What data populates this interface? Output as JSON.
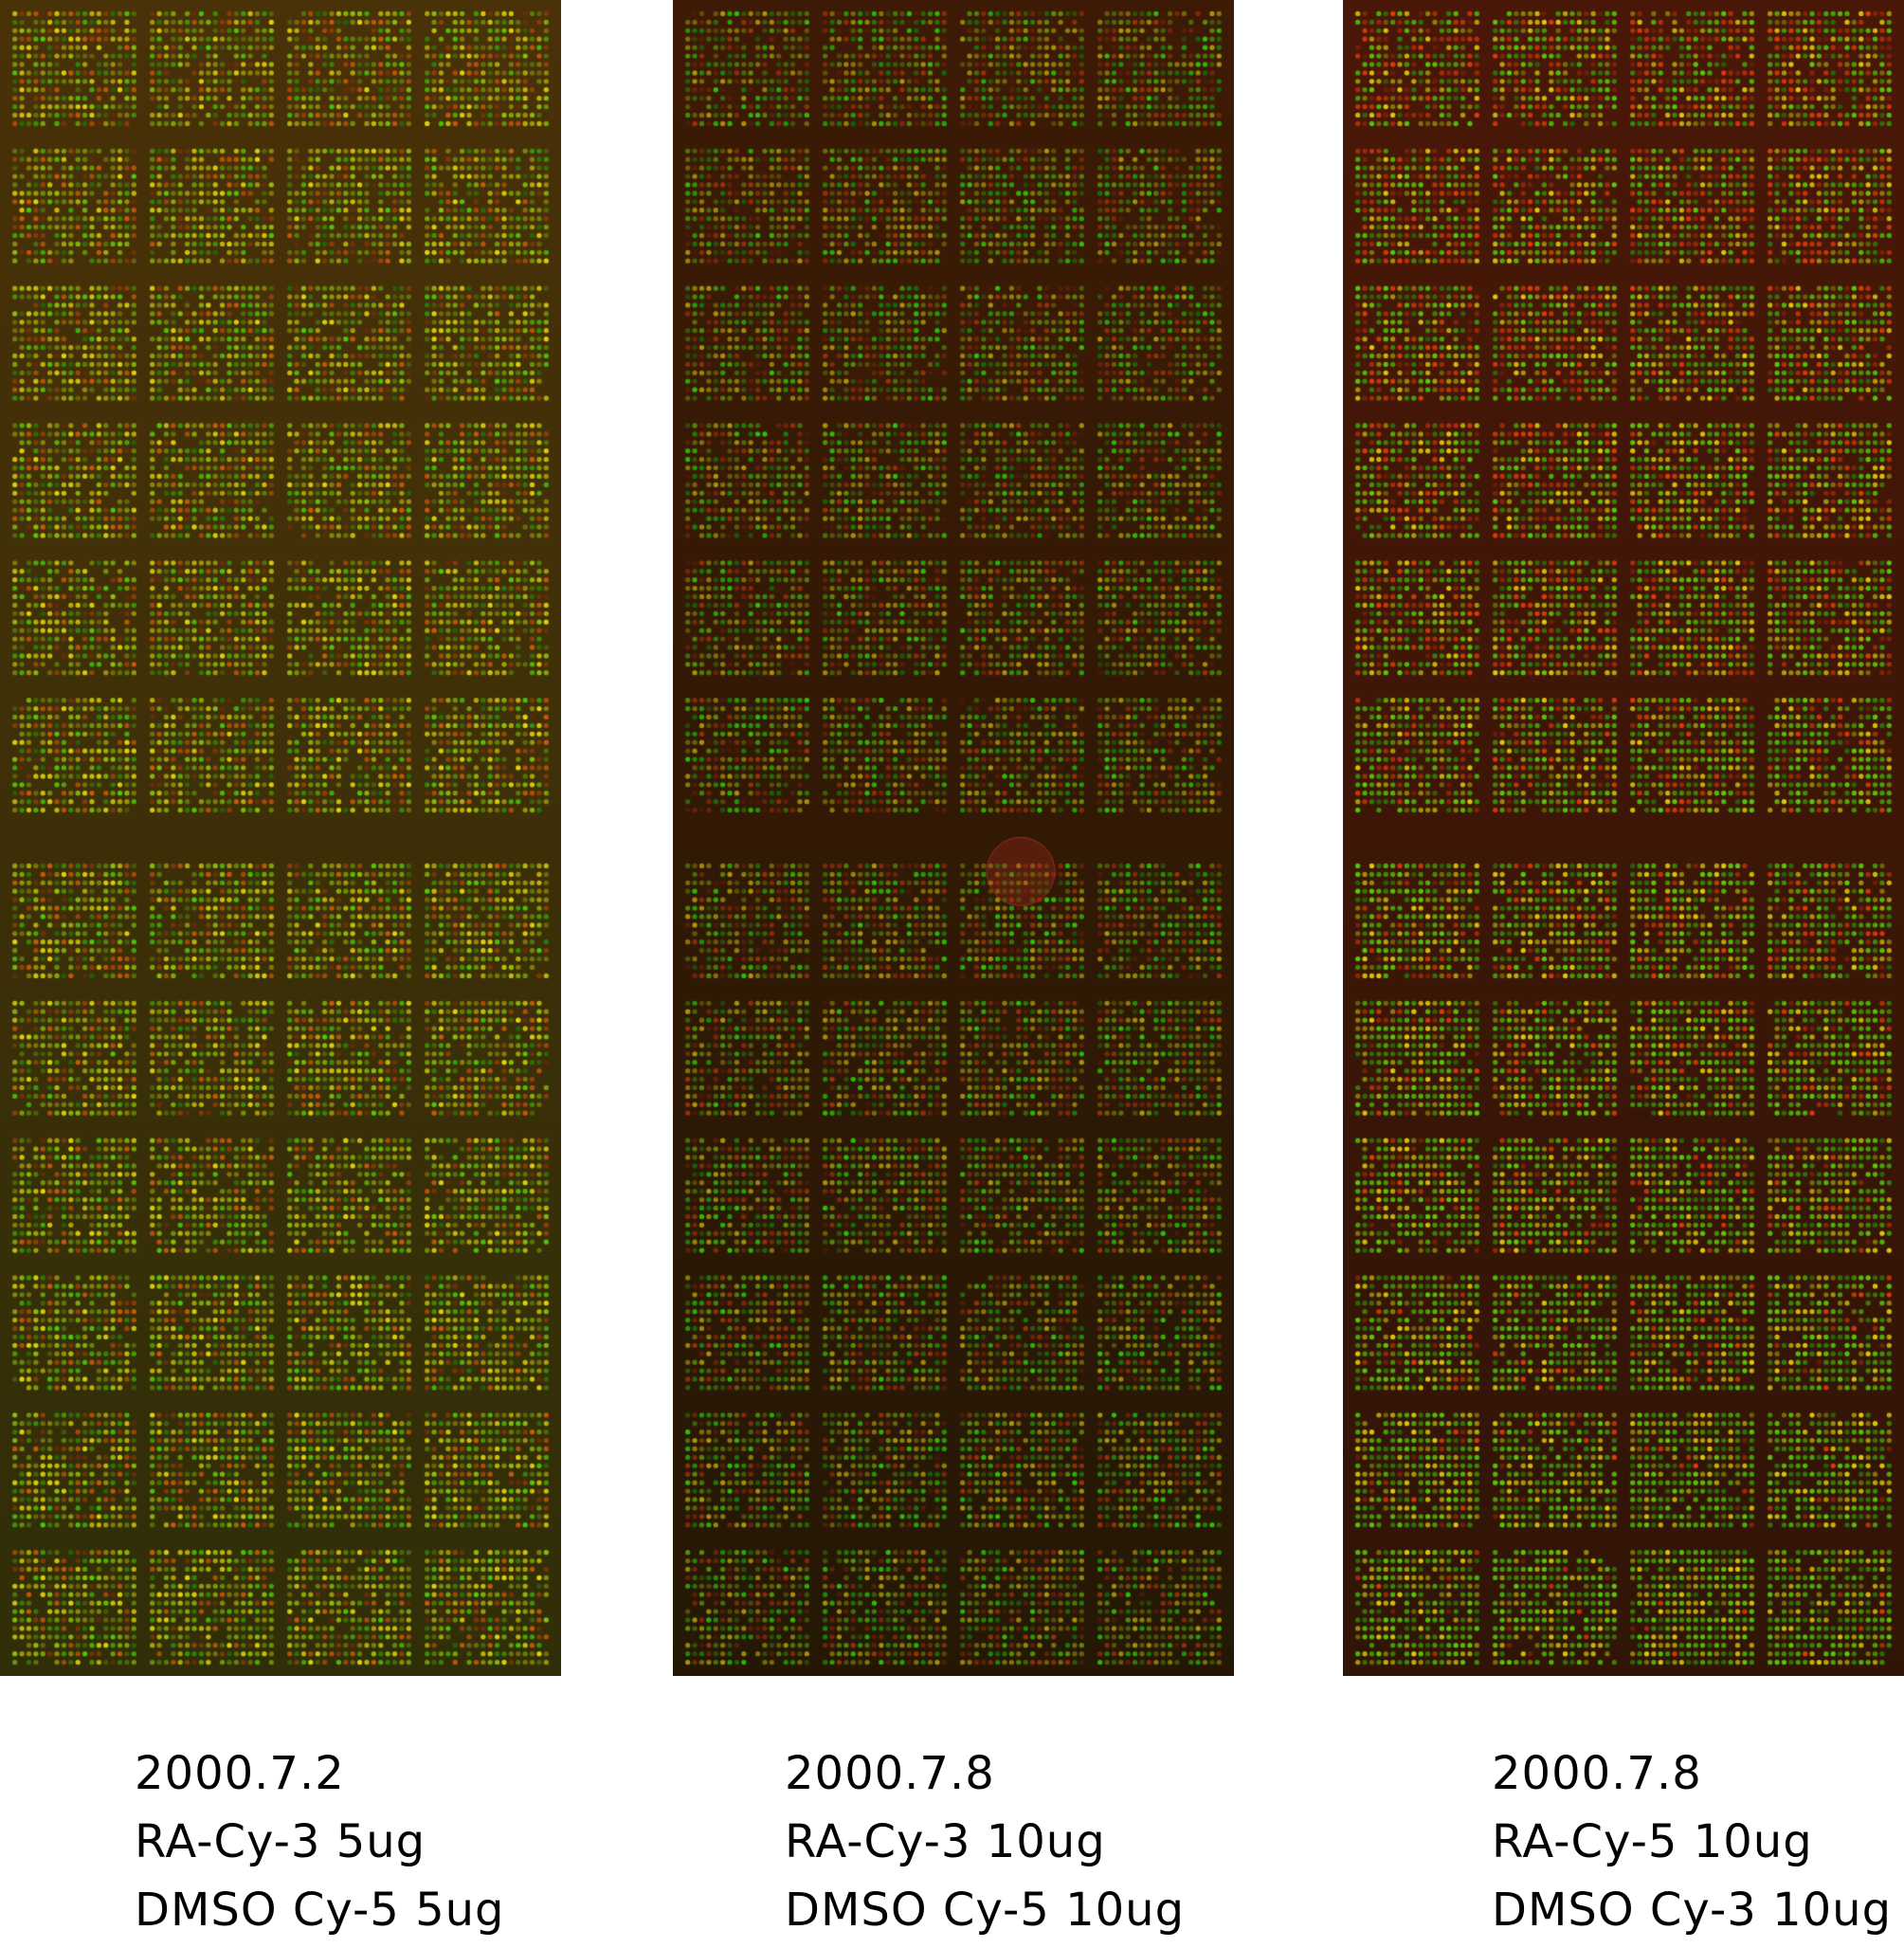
{
  "slides": [
    {
      "date": "2000.7.2",
      "line1": "RA-Cy-3 5ug",
      "line2": "DMSO Cy-5 5ug",
      "background_color": "#3a2a08",
      "dominant_tone": "green-yellow",
      "features": [
        "block-grid-4x12",
        "spot-arrays"
      ]
    },
    {
      "date": "2000.7.8",
      "line1": "RA-Cy-3 10ug",
      "line2": "DMSO Cy-5 10ug",
      "background_color": "#2a0c04",
      "dominant_tone": "dark-red-green",
      "features": [
        "block-grid-4x12",
        "spot-arrays",
        "circular-artifact"
      ]
    },
    {
      "date": "2000.7.8",
      "line1": "RA-Cy-5 10ug",
      "line2": "DMSO Cy-3 10ug",
      "background_color": "#3a0806",
      "dominant_tone": "red-to-green",
      "features": [
        "block-grid-4x12",
        "spot-arrays"
      ]
    }
  ]
}
